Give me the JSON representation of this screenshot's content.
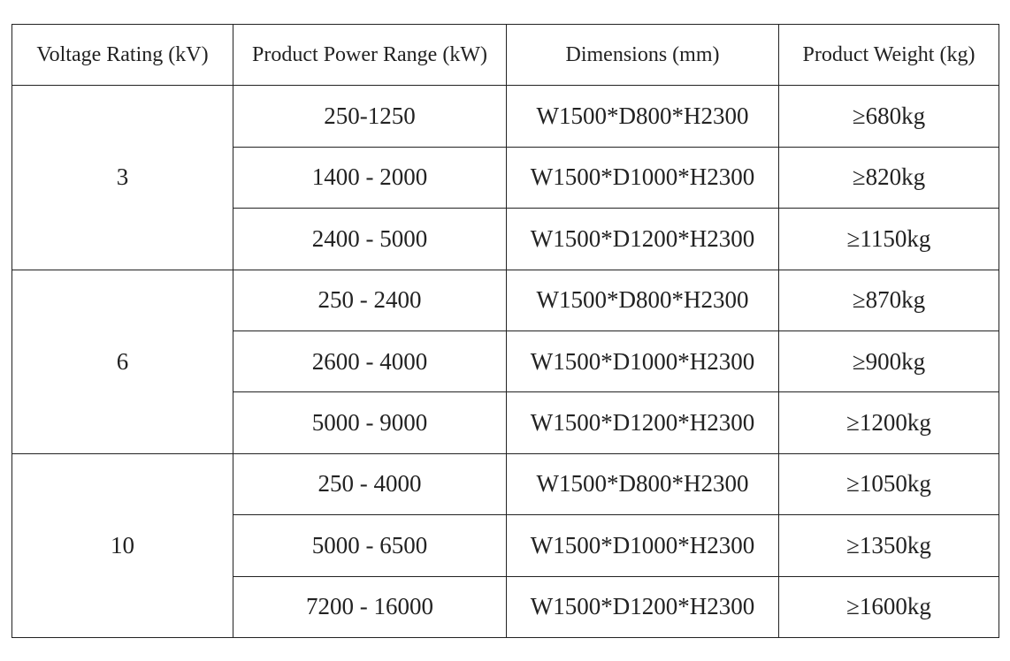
{
  "table": {
    "header": [
      "Voltage Rating (kV)",
      "Product Power Range (kW)",
      "Dimensions (mm)",
      "Product Weight (kg)"
    ],
    "groups": [
      {
        "voltage": "3",
        "rows": [
          [
            "250-1250",
            "W1500*D800*H2300",
            "≥680kg"
          ],
          [
            "1400 - 2000",
            "W1500*D1000*H2300",
            "≥820kg"
          ],
          [
            "2400 - 5000",
            "W1500*D1200*H2300",
            "≥1150kg"
          ]
        ]
      },
      {
        "voltage": "6",
        "rows": [
          [
            "250 - 2400",
            "W1500*D800*H2300",
            "≥870kg"
          ],
          [
            "2600 - 4000",
            "W1500*D1000*H2300",
            "≥900kg"
          ],
          [
            "5000 - 9000",
            "W1500*D1200*H2300",
            "≥1200kg"
          ]
        ]
      },
      {
        "voltage": "10",
        "rows": [
          [
            "250 - 4000",
            "W1500*D800*H2300",
            "≥1050kg"
          ],
          [
            "5000 - 6500",
            "W1500*D1000*H2300",
            "≥1350kg"
          ],
          [
            "7200 - 16000",
            "W1500*D1200*H2300",
            "≥1600kg"
          ]
        ]
      }
    ]
  }
}
